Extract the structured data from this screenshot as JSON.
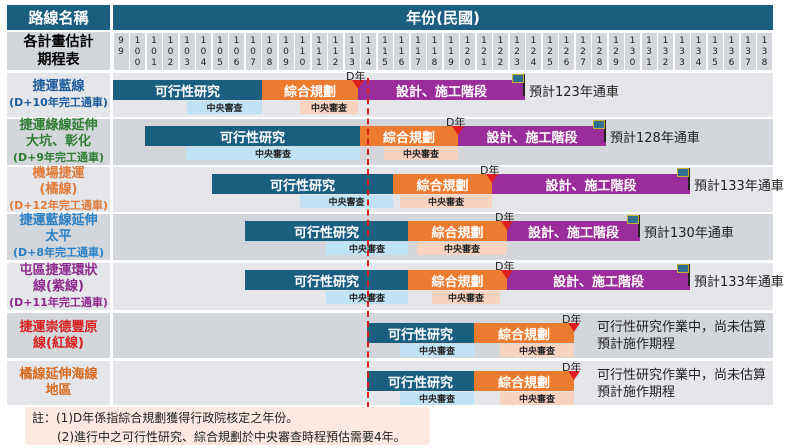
{
  "header": {
    "route_name": "路線名稱",
    "year_title": "年份(民國)",
    "schedule_label": "各計畫估計期程表"
  },
  "years": [
    "99",
    "100",
    "101",
    "102",
    "103",
    "104",
    "105",
    "106",
    "107",
    "108",
    "109",
    "110",
    "111",
    "112",
    "113",
    "114",
    "115",
    "116",
    "117",
    "118",
    "119",
    "120",
    "121",
    "122",
    "123",
    "124",
    "125",
    "126",
    "127",
    "128",
    "129",
    "130",
    "131",
    "132",
    "133",
    "134",
    "135",
    "136",
    "137",
    "138"
  ],
  "phases": {
    "feasibility": "可行性研究",
    "planning": "綜合規劃",
    "design": "設計、施工階段",
    "review": "中央審查",
    "d_year": "D年"
  },
  "colors": {
    "header": "#1b5f80",
    "feasibility": "#1b5f80",
    "planning": "#ec7a2f",
    "design": "#9b2d9b",
    "review_feasibility": "#bfe3f5",
    "review_planning": "#f8d3c0",
    "d_marker": "#e02020"
  },
  "routes": [
    {
      "name": [
        "捷運藍線",
        "(D+10年完工通車)"
      ],
      "color": "#1d5c9c",
      "result": "預計123年通車"
    },
    {
      "name": [
        "捷運綠線延伸",
        "大坑、彰化",
        "(D+9年完工通車)"
      ],
      "color": "#2e7d32",
      "result": "預計128年通車"
    },
    {
      "name": [
        "機場捷運",
        "(橘線)",
        "(D+12年完工通車)"
      ],
      "color": "#e07b39",
      "result": "預計133年通車"
    },
    {
      "name": [
        "捷運藍線延伸",
        "太平",
        "(D+8年完工通車)"
      ],
      "color": "#2a80c4",
      "result": "預計130年通車"
    },
    {
      "name": [
        "屯區捷運環狀",
        "線(紫線)",
        "(D+11年完工通車)"
      ],
      "color": "#8e2a8e",
      "result": "預計133年通車"
    },
    {
      "name": [
        "捷運崇德豐原",
        "線(紅線)"
      ],
      "color": "#d81e1e",
      "result": "可行性研究作業中，尚未估算預計施作期程"
    },
    {
      "name": [
        "橘線延伸海線",
        "地區"
      ],
      "color": "#d86a1f",
      "result": "可行性研究作業中，尚未估算預計施作期程"
    }
  ],
  "notes": [
    "註：(1)D年係指綜合規劃獲得行政院核定之年份。",
    "(2)進行中之可行性研究、綜合規劃於中央審查時程預估需要4年。"
  ]
}
